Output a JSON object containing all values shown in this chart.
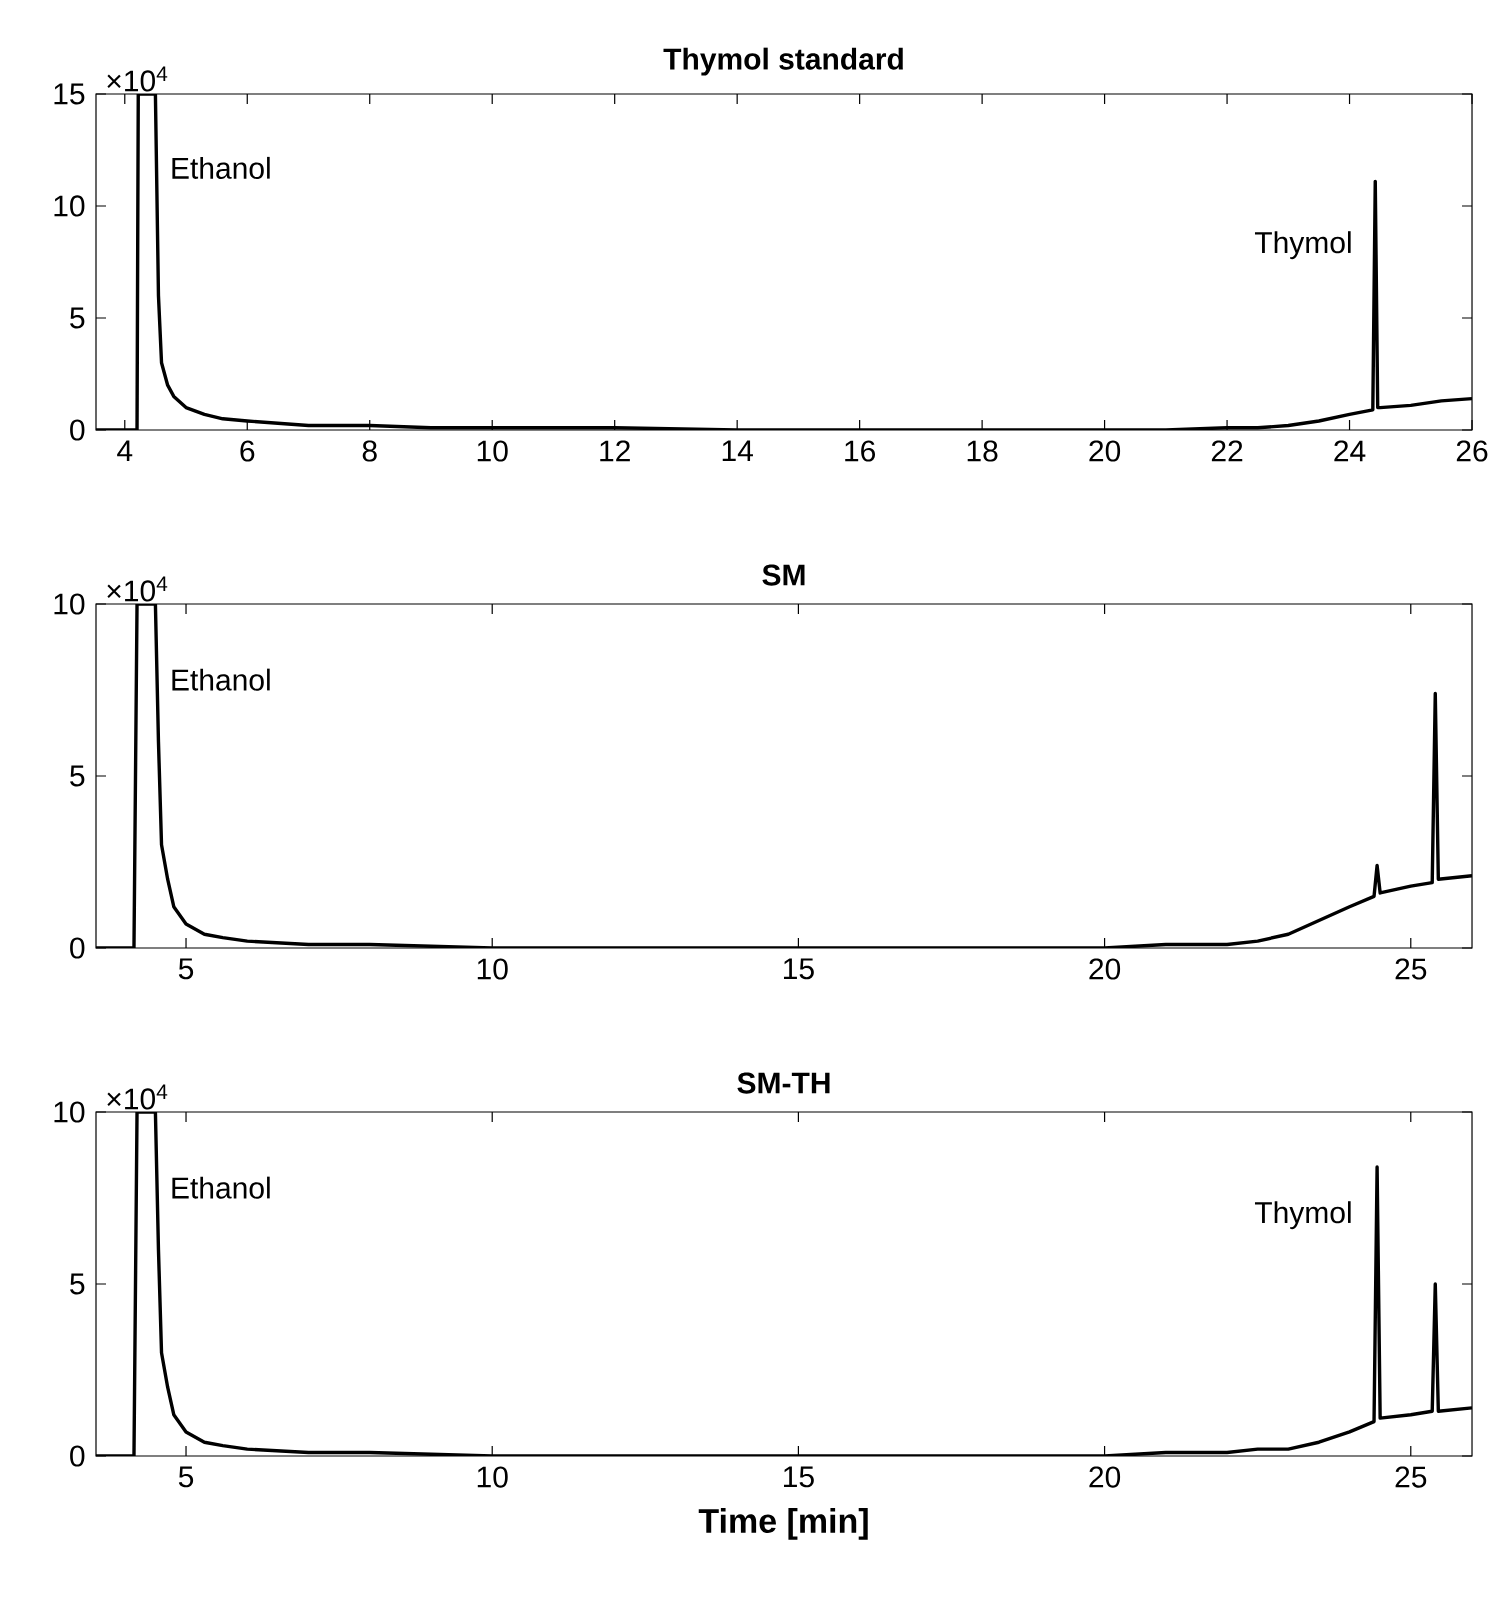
{
  "chart_data": [
    {
      "type": "line",
      "title": "Thymol standard",
      "xlim": [
        3.53,
        26
      ],
      "ylim": [
        0,
        15
      ],
      "xticks": [
        4,
        6,
        8,
        10,
        12,
        14,
        16,
        18,
        20,
        22,
        24,
        26
      ],
      "yticks": [
        0,
        5,
        10,
        15
      ],
      "series": [
        {
          "color": "#000000",
          "x": [
            3.53,
            4.15,
            4.2,
            4.22,
            4.5,
            4.55,
            4.6,
            4.7,
            4.8,
            5,
            5.3,
            5.6,
            6,
            7,
            8,
            9,
            10,
            12,
            14,
            16,
            18,
            20,
            21,
            22,
            22.5,
            23,
            23.5,
            24,
            24.38,
            24.42,
            24.46,
            24.5,
            25,
            25.5,
            26
          ],
          "values": [
            0,
            0,
            0,
            15,
            15,
            6,
            3,
            2,
            1.5,
            1,
            0.7,
            0.5,
            0.4,
            0.2,
            0.2,
            0.1,
            0.1,
            0.1,
            0,
            0,
            0,
            0,
            0,
            0.1,
            0.1,
            0.2,
            0.4,
            0.7,
            0.9,
            11.1,
            1,
            1,
            1.1,
            1.3,
            1.4
          ]
        }
      ],
      "annotations": [
        "×10$^{4}$",
        "Ethanol",
        "Thymol"
      ]
    },
    {
      "type": "line",
      "title": "SM",
      "xlim": [
        3.53,
        26
      ],
      "ylim": [
        0,
        10
      ],
      "xticks": [
        5,
        10,
        15,
        20,
        25
      ],
      "yticks": [
        0,
        5,
        10
      ],
      "series": [
        {
          "color": "#000000",
          "x": [
            3.53,
            4.15,
            4.2,
            4.5,
            4.55,
            4.6,
            4.7,
            4.8,
            5,
            5.3,
            5.6,
            6,
            7,
            8,
            10,
            12,
            15,
            18,
            20,
            21,
            22,
            22.5,
            23,
            23.5,
            24,
            24.4,
            24.45,
            24.5,
            25,
            25.35,
            25.4,
            25.45,
            26
          ],
          "values": [
            0,
            0,
            10,
            10,
            6,
            3,
            2,
            1.2,
            0.7,
            0.4,
            0.3,
            0.2,
            0.1,
            0.1,
            0,
            0,
            0,
            0,
            0,
            0.1,
            0.1,
            0.2,
            0.4,
            0.8,
            1.2,
            1.5,
            2.4,
            1.6,
            1.8,
            1.9,
            7.4,
            2,
            2.1
          ]
        }
      ],
      "annotations": [
        "×10$^{4}$",
        "Ethanol"
      ]
    },
    {
      "type": "line",
      "title": "SM-TH",
      "xlabel": "Time [min]",
      "xlim": [
        3.53,
        26
      ],
      "ylim": [
        0,
        10
      ],
      "xticks": [
        5,
        10,
        15,
        20,
        25
      ],
      "yticks": [
        0,
        5,
        10
      ],
      "series": [
        {
          "color": "#000000",
          "x": [
            3.53,
            4.15,
            4.2,
            4.5,
            4.55,
            4.6,
            4.7,
            4.8,
            5,
            5.3,
            5.6,
            6,
            7,
            8,
            10,
            12,
            15,
            18,
            20,
            21,
            22,
            22.5,
            23,
            23.5,
            24,
            24.4,
            24.45,
            24.5,
            25,
            25.35,
            25.4,
            25.45,
            26
          ],
          "values": [
            0,
            0,
            10,
            10,
            6,
            3,
            2,
            1.2,
            0.7,
            0.4,
            0.3,
            0.2,
            0.1,
            0.1,
            0,
            0,
            0,
            0,
            0,
            0.1,
            0.1,
            0.2,
            0.2,
            0.4,
            0.7,
            1,
            8.4,
            1.1,
            1.2,
            1.3,
            5,
            1.3,
            1.4
          ]
        }
      ],
      "annotations": [
        "×10$^{4}$",
        "Ethanol",
        "Thymol"
      ]
    }
  ]
}
